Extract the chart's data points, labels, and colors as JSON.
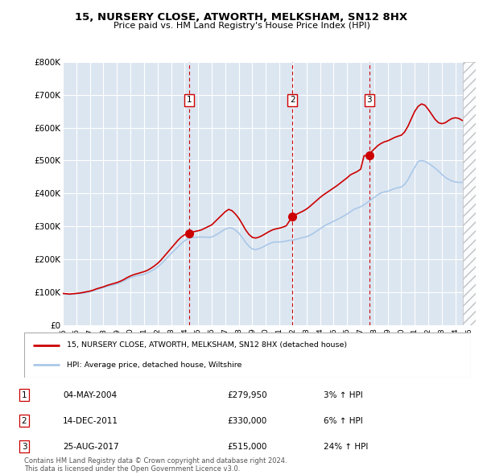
{
  "title": "15, NURSERY CLOSE, ATWORTH, MELKSHAM, SN12 8HX",
  "subtitle": "Price paid vs. HM Land Registry's House Price Index (HPI)",
  "background_color": "#ffffff",
  "plot_bg_color": "#dce6f1",
  "grid_color": "#ffffff",
  "hpi_line_color": "#aac8e8",
  "price_line_color": "#cc0000",
  "sale_marker_color": "#cc0000",
  "sale_vline_color": "#cc0000",
  "ylim": [
    0,
    800000
  ],
  "yticks": [
    0,
    100000,
    200000,
    300000,
    400000,
    500000,
    600000,
    700000,
    800000
  ],
  "ytick_labels": [
    "£0",
    "£100K",
    "£200K",
    "£300K",
    "£400K",
    "£500K",
    "£600K",
    "£700K",
    "£800K"
  ],
  "xlim_start": 1995.0,
  "xlim_end": 2025.5,
  "xticks": [
    1995,
    1996,
    1997,
    1998,
    1999,
    2000,
    2001,
    2002,
    2003,
    2004,
    2005,
    2006,
    2007,
    2008,
    2009,
    2010,
    2011,
    2012,
    2013,
    2014,
    2015,
    2016,
    2017,
    2018,
    2019,
    2020,
    2021,
    2022,
    2023,
    2024,
    2025
  ],
  "sales": [
    {
      "num": 1,
      "date": "04-MAY-2004",
      "x": 2004.35,
      "price": 279950,
      "pct": "3%",
      "dir": "↑"
    },
    {
      "num": 2,
      "date": "14-DEC-2011",
      "x": 2011.95,
      "price": 330000,
      "pct": "6%",
      "dir": "↑"
    },
    {
      "num": 3,
      "date": "25-AUG-2017",
      "x": 2017.65,
      "price": 515000,
      "pct": "24%",
      "dir": "↑"
    }
  ],
  "legend_label_red": "15, NURSERY CLOSE, ATWORTH, MELKSHAM, SN12 8HX (detached house)",
  "legend_label_blue": "HPI: Average price, detached house, Wiltshire",
  "footer": "Contains HM Land Registry data © Crown copyright and database right 2024.\nThis data is licensed under the Open Government Licence v3.0.",
  "hpi_data_x": [
    1995.0,
    1995.25,
    1995.5,
    1995.75,
    1996.0,
    1996.25,
    1996.5,
    1996.75,
    1997.0,
    1997.25,
    1997.5,
    1997.75,
    1998.0,
    1998.25,
    1998.5,
    1998.75,
    1999.0,
    1999.25,
    1999.5,
    1999.75,
    2000.0,
    2000.25,
    2000.5,
    2000.75,
    2001.0,
    2001.25,
    2001.5,
    2001.75,
    2002.0,
    2002.25,
    2002.5,
    2002.75,
    2003.0,
    2003.25,
    2003.5,
    2003.75,
    2004.0,
    2004.25,
    2004.5,
    2004.75,
    2005.0,
    2005.25,
    2005.5,
    2005.75,
    2006.0,
    2006.25,
    2006.5,
    2006.75,
    2007.0,
    2007.25,
    2007.5,
    2007.75,
    2008.0,
    2008.25,
    2008.5,
    2008.75,
    2009.0,
    2009.25,
    2009.5,
    2009.75,
    2010.0,
    2010.25,
    2010.5,
    2010.75,
    2011.0,
    2011.25,
    2011.5,
    2011.75,
    2012.0,
    2012.25,
    2012.5,
    2012.75,
    2013.0,
    2013.25,
    2013.5,
    2013.75,
    2014.0,
    2014.25,
    2014.5,
    2014.75,
    2015.0,
    2015.25,
    2015.5,
    2015.75,
    2016.0,
    2016.25,
    2016.5,
    2016.75,
    2017.0,
    2017.25,
    2017.5,
    2017.75,
    2018.0,
    2018.25,
    2018.5,
    2018.75,
    2019.0,
    2019.25,
    2019.5,
    2019.75,
    2020.0,
    2020.25,
    2020.5,
    2020.75,
    2021.0,
    2021.25,
    2021.5,
    2021.75,
    2022.0,
    2022.25,
    2022.5,
    2022.75,
    2023.0,
    2023.25,
    2023.5,
    2023.75,
    2024.0,
    2024.25,
    2024.5
  ],
  "hpi_data_y": [
    96000,
    95000,
    94000,
    95000,
    96000,
    97000,
    98000,
    100000,
    102000,
    105000,
    109000,
    112000,
    115000,
    118000,
    121000,
    123000,
    126000,
    130000,
    135000,
    140000,
    145000,
    148000,
    151000,
    153000,
    155000,
    159000,
    164000,
    170000,
    177000,
    186000,
    196000,
    207000,
    218000,
    228000,
    238000,
    248000,
    257000,
    263000,
    266000,
    267000,
    268000,
    268000,
    268000,
    267000,
    268000,
    273000,
    279000,
    286000,
    292000,
    296000,
    295000,
    289000,
    280000,
    267000,
    252000,
    240000,
    232000,
    230000,
    233000,
    237000,
    243000,
    248000,
    252000,
    253000,
    253000,
    254000,
    256000,
    258000,
    259000,
    261000,
    264000,
    267000,
    269000,
    273000,
    279000,
    286000,
    293000,
    300000,
    306000,
    311000,
    316000,
    321000,
    326000,
    332000,
    338000,
    345000,
    352000,
    356000,
    360000,
    366000,
    373000,
    381000,
    388000,
    396000,
    402000,
    405000,
    407000,
    411000,
    415000,
    418000,
    420000,
    428000,
    443000,
    462000,
    480000,
    498000,
    500000,
    498000,
    492000,
    485000,
    477000,
    468000,
    458000,
    449000,
    443000,
    438000,
    435000,
    434000,
    434000
  ],
  "price_data_x": [
    1995.0,
    1995.25,
    1995.5,
    1995.75,
    1996.0,
    1996.25,
    1996.5,
    1996.75,
    1997.0,
    1997.25,
    1997.5,
    1997.75,
    1998.0,
    1998.25,
    1998.5,
    1998.75,
    1999.0,
    1999.25,
    1999.5,
    1999.75,
    2000.0,
    2000.25,
    2000.5,
    2000.75,
    2001.0,
    2001.25,
    2001.5,
    2001.75,
    2002.0,
    2002.25,
    2002.5,
    2002.75,
    2003.0,
    2003.25,
    2003.5,
    2003.75,
    2004.0,
    2004.35,
    2004.5,
    2004.75,
    2005.0,
    2005.25,
    2005.5,
    2005.75,
    2006.0,
    2006.25,
    2006.5,
    2006.75,
    2007.0,
    2007.25,
    2007.5,
    2007.75,
    2008.0,
    2008.25,
    2008.5,
    2008.75,
    2009.0,
    2009.25,
    2009.5,
    2009.75,
    2010.0,
    2010.25,
    2010.5,
    2010.75,
    2011.0,
    2011.25,
    2011.5,
    2011.95,
    2012.0,
    2012.25,
    2012.5,
    2012.75,
    2013.0,
    2013.25,
    2013.5,
    2013.75,
    2014.0,
    2014.25,
    2014.5,
    2014.75,
    2015.0,
    2015.25,
    2015.5,
    2015.75,
    2016.0,
    2016.25,
    2016.5,
    2016.75,
    2017.0,
    2017.25,
    2017.65,
    2017.75,
    2018.0,
    2018.25,
    2018.5,
    2018.75,
    2019.0,
    2019.25,
    2019.5,
    2019.75,
    2020.0,
    2020.25,
    2020.5,
    2020.75,
    2021.0,
    2021.25,
    2021.5,
    2021.75,
    2022.0,
    2022.25,
    2022.5,
    2022.75,
    2023.0,
    2023.25,
    2023.5,
    2023.75,
    2024.0,
    2024.25,
    2024.5
  ],
  "price_data_y": [
    97000,
    96000,
    95000,
    96000,
    97000,
    98000,
    100000,
    102000,
    104000,
    107000,
    111000,
    114000,
    117000,
    121000,
    124000,
    127000,
    130000,
    134000,
    139000,
    145000,
    150000,
    154000,
    157000,
    160000,
    163000,
    167000,
    173000,
    180000,
    188000,
    198000,
    210000,
    222000,
    234000,
    246000,
    258000,
    268000,
    275000,
    279950,
    282000,
    285000,
    287000,
    290000,
    295000,
    300000,
    305000,
    315000,
    325000,
    335000,
    345000,
    352000,
    348000,
    338000,
    325000,
    308000,
    290000,
    276000,
    267000,
    265000,
    268000,
    273000,
    279000,
    285000,
    290000,
    293000,
    295000,
    298000,
    302000,
    330000,
    333000,
    337000,
    342000,
    347000,
    353000,
    361000,
    370000,
    379000,
    388000,
    396000,
    403000,
    410000,
    417000,
    424000,
    432000,
    440000,
    448000,
    457000,
    462000,
    467000,
    474000,
    515000,
    515000,
    525000,
    535000,
    545000,
    552000,
    557000,
    560000,
    565000,
    570000,
    574000,
    577000,
    587000,
    605000,
    628000,
    650000,
    665000,
    672000,
    668000,
    655000,
    640000,
    625000,
    615000,
    612000,
    615000,
    622000,
    628000,
    630000,
    628000,
    622000
  ]
}
